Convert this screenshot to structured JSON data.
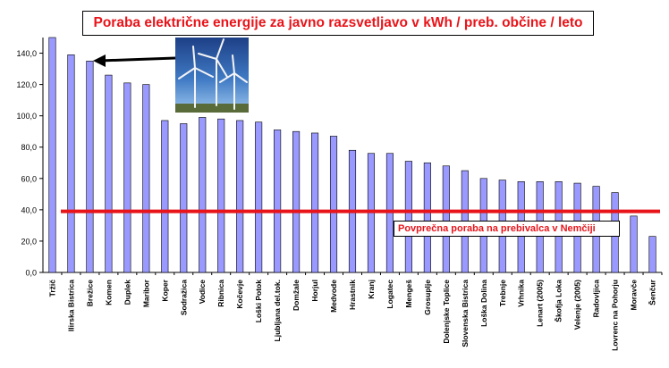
{
  "chart_data": {
    "type": "bar",
    "title": "Poraba električne energije za javno razsvetljavo v kWh / preb. občine / leto",
    "categories": [
      "Tržič",
      "Ilirska Bistrica",
      "Brežice",
      "Komen",
      "Duplek",
      "Maribor",
      "Koper",
      "Sodražica",
      "Vodice",
      "Ribnica",
      "Kočevje",
      "Loški Potok",
      "Ljubljana  del.tok.",
      "Domžale",
      "Horjul",
      "Medvode",
      "Hrastnik",
      "Kranj",
      "Logatec",
      "Mengeš",
      "Grosuplje",
      "Dolenjske Toplice",
      "Slovenska Bistrica",
      "Loška Dolina",
      "Trebnje",
      "Vrhnika",
      "Lenart (2005)",
      "Škofja Loka",
      "Velenje (2005)",
      "Radovljica",
      "Lovrenc na Pohorju",
      "Moravče",
      "Šenčur"
    ],
    "values": [
      150,
      139,
      135,
      126,
      121,
      120,
      97,
      95,
      99,
      98,
      97,
      96,
      91,
      90,
      89,
      87,
      78,
      76,
      76,
      71,
      70,
      68,
      65,
      60,
      59,
      58,
      58,
      58,
      57,
      55,
      51,
      36,
      23
    ],
    "yticks": [
      "0,0",
      "20,0",
      "40,0",
      "60,0",
      "80,0",
      "100,0",
      "120,0",
      "140,0"
    ],
    "ylim": [
      0,
      150
    ],
    "bar_color": "#9999ff",
    "reference_line": {
      "value": 39,
      "label": "Povprečna poraba na prebivalca v Nemčiji",
      "color": "#e8141a"
    },
    "grid": false
  }
}
